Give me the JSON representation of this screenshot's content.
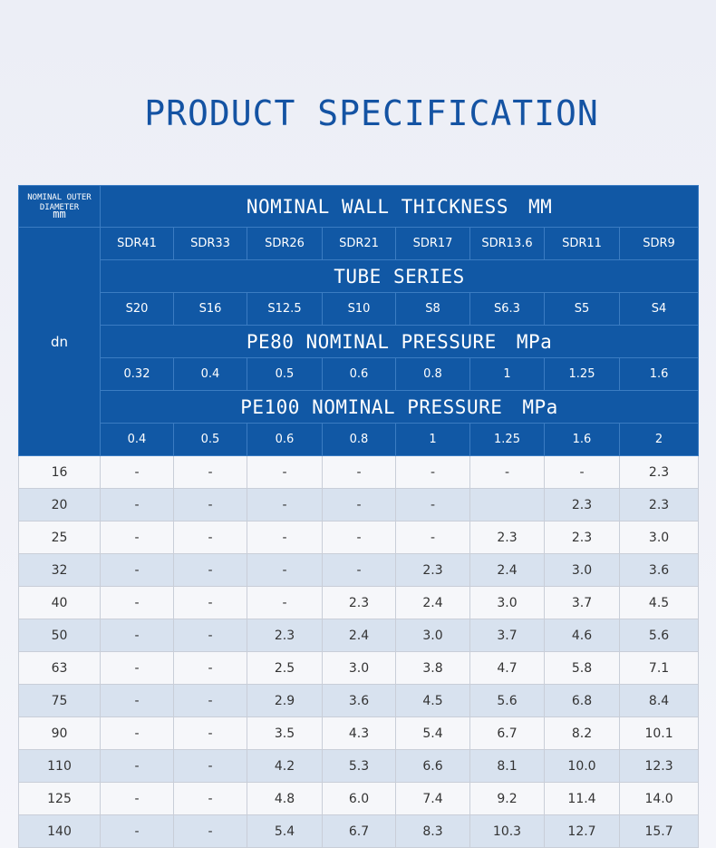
{
  "title": "PRODUCT SPECIFICATION",
  "header": {
    "corner_line1": "NOMINAL OUTER",
    "corner_line2": "DIAMETER",
    "corner_unit": "mm",
    "dn": "dn",
    "wall_thickness_label": "NOMINAL WALL THICKNESS",
    "wall_thickness_unit": "MM",
    "tube_series_label": "TUBE SERIES",
    "pe80_label": "PE80 NOMINAL PRESSURE",
    "pe80_unit": "MPa",
    "pe100_label": "PE100 NOMINAL PRESSURE",
    "pe100_unit": "MPa",
    "sdr": [
      "SDR41",
      "SDR33",
      "SDR26",
      "SDR21",
      "SDR17",
      "SDR13.6",
      "SDR11",
      "SDR9"
    ],
    "series": [
      "S20",
      "S16",
      "S12.5",
      "S10",
      "S8",
      "S6.3",
      "S5",
      "S4"
    ],
    "pe80": [
      "0.32",
      "0.4",
      "0.5",
      "0.6",
      "0.8",
      "1",
      "1.25",
      "1.6"
    ],
    "pe100": [
      "0.4",
      "0.5",
      "0.6",
      "0.8",
      "1",
      "1.25",
      "1.6",
      "2"
    ]
  },
  "rows": [
    {
      "dn": "16",
      "values": [
        "-",
        "-",
        "-",
        "-",
        "-",
        "-",
        "-",
        "2.3"
      ]
    },
    {
      "dn": "20",
      "values": [
        "-",
        "-",
        "-",
        "-",
        "-",
        "",
        "2.3",
        "2.3"
      ]
    },
    {
      "dn": "25",
      "values": [
        "-",
        "-",
        "-",
        "-",
        "-",
        "2.3",
        "2.3",
        "3.0"
      ]
    },
    {
      "dn": "32",
      "values": [
        "-",
        "-",
        "-",
        "-",
        "2.3",
        "2.4",
        "3.0",
        "3.6"
      ]
    },
    {
      "dn": "40",
      "values": [
        "-",
        "-",
        "-",
        "2.3",
        "2.4",
        "3.0",
        "3.7",
        "4.5"
      ]
    },
    {
      "dn": "50",
      "values": [
        "-",
        "-",
        "2.3",
        "2.4",
        "3.0",
        "3.7",
        "4.6",
        "5.6"
      ]
    },
    {
      "dn": "63",
      "values": [
        "-",
        "-",
        "2.5",
        "3.0",
        "3.8",
        "4.7",
        "5.8",
        "7.1"
      ]
    },
    {
      "dn": "75",
      "values": [
        "-",
        "-",
        "2.9",
        "3.6",
        "4.5",
        "5.6",
        "6.8",
        "8.4"
      ]
    },
    {
      "dn": "90",
      "values": [
        "-",
        "-",
        "3.5",
        "4.3",
        "5.4",
        "6.7",
        "8.2",
        "10.1"
      ]
    },
    {
      "dn": "110",
      "values": [
        "-",
        "-",
        "4.2",
        "5.3",
        "6.6",
        "8.1",
        "10.0",
        "12.3"
      ]
    },
    {
      "dn": "125",
      "values": [
        "-",
        "-",
        "4.8",
        "6.0",
        "7.4",
        "9.2",
        "11.4",
        "14.0"
      ]
    },
    {
      "dn": "140",
      "values": [
        "-",
        "-",
        "5.4",
        "6.7",
        "8.3",
        "10.3",
        "12.7",
        "15.7"
      ]
    }
  ]
}
